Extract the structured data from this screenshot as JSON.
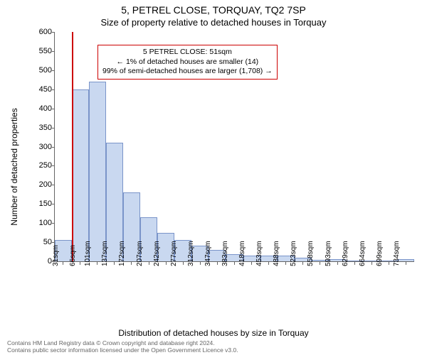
{
  "title_line1": "5, PETREL CLOSE, TORQUAY, TQ2 7SP",
  "title_line2": "Size of property relative to detached houses in Torquay",
  "y_axis_label": "Number of detached properties",
  "x_axis_label": "Distribution of detached houses by size in Torquay",
  "chart": {
    "type": "histogram",
    "ylim": [
      0,
      600
    ],
    "ytick_step": 50,
    "bar_fill": "#c9d8f0",
    "bar_stroke": "#7a94c9",
    "grid_color": "#d9d9d9",
    "marker_color": "#cc0000",
    "annotation_border": "#cc0000",
    "categories": [
      "31sqm",
      "66sqm",
      "101sqm",
      "137sqm",
      "172sqm",
      "207sqm",
      "242sqm",
      "277sqm",
      "312sqm",
      "347sqm",
      "383sqm",
      "418sqm",
      "453sqm",
      "488sqm",
      "523sqm",
      "558sqm",
      "593sqm",
      "629sqm",
      "664sqm",
      "699sqm",
      "734sqm"
    ],
    "values": [
      55,
      450,
      470,
      310,
      180,
      115,
      75,
      55,
      40,
      30,
      18,
      15,
      15,
      15,
      10,
      3,
      5,
      2,
      2,
      2,
      5
    ],
    "marker_after_index": 0
  },
  "annotation": {
    "line1": "5 PETREL CLOSE: 51sqm",
    "line2": "← 1% of detached houses are smaller (14)",
    "line3": "99% of semi-detached houses are larger (1,708) →"
  },
  "footer_line1": "Contains HM Land Registry data © Crown copyright and database right 2024.",
  "footer_line2": "Contains public sector information licensed under the Open Government Licence v3.0."
}
